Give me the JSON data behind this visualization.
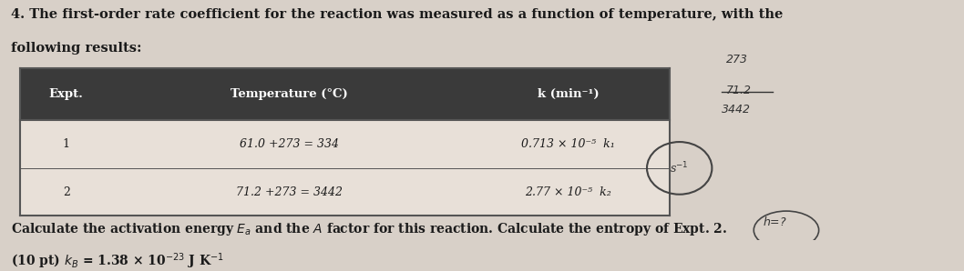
{
  "title_line1": "4. The first-order rate coefficient for the reaction was measured as a function of temperature, with the",
  "title_line2": "following results:",
  "table_headers": [
    "Expt.",
    "Temperature (°C)",
    "k (min⁻¹)"
  ],
  "table_rows": [
    [
      "1",
      "61.0 +273 = 334",
      "0.713 × 10⁻⁵  k₁"
    ],
    [
      "2",
      "71.2 +273 = 3442",
      "2.77 × 10⁻⁵  k₂"
    ]
  ],
  "handwritten_top_right": [
    "273",
    "71.2",
    "3442"
  ],
  "handwritten_circle": "s⁻¹",
  "bottom_text_line1": "Calculate the activation energy ᴇₐ and the ᴀ factor for this reaction. Calculate the entropy of Expt. 2.",
  "bottom_text_line2": "(10 pt) kв = 1.38 × 10⁻²³ J K⁻¹",
  "bg_color": "#d8d0c8",
  "header_bg": "#3a3a3a",
  "header_fg": "#ffffff",
  "row_bg": "#e8e0d8",
  "border_color": "#555555",
  "text_color": "#1a1a1a"
}
